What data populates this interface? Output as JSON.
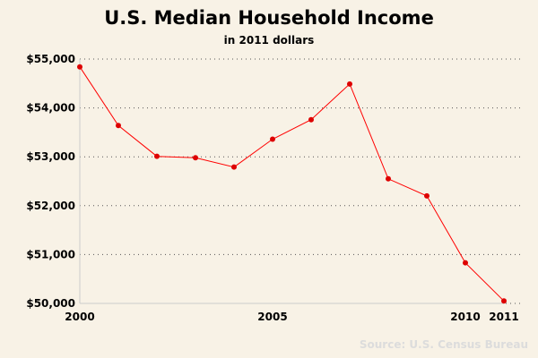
{
  "chart_data": {
    "type": "line",
    "title": "U.S. Median Household Income",
    "subtitle": "in 2011 dollars",
    "xlabel": "",
    "ylabel": "",
    "source": "Source: U.S. Census Bureau",
    "x": [
      2000,
      2001,
      2002,
      2003,
      2004,
      2005,
      2006,
      2007,
      2008,
      2009,
      2010,
      2011
    ],
    "values": [
      54840,
      53640,
      53010,
      52980,
      52790,
      53360,
      53760,
      54490,
      52550,
      52200,
      50830,
      50050
    ],
    "xlim": [
      2000,
      2011
    ],
    "ylim": [
      50000,
      55000
    ],
    "x_ticks": [
      2000,
      2005,
      2010,
      2011
    ],
    "x_tick_labels": [
      "2000",
      "2005",
      "2010",
      "2011"
    ],
    "y_ticks": [
      50000,
      51000,
      52000,
      53000,
      54000,
      55000
    ],
    "y_tick_labels": [
      "$50,000",
      "$51,000",
      "$52,000",
      "$53,000",
      "$54,000",
      "$55,000"
    ],
    "grid": "horizontal dotted",
    "colors": {
      "background": "#f8f2e6",
      "line": "#ff0000",
      "marker": "#dd0000",
      "axis": "#cccccc",
      "grid": "#555555",
      "source_text": "#dcdcdc"
    }
  }
}
